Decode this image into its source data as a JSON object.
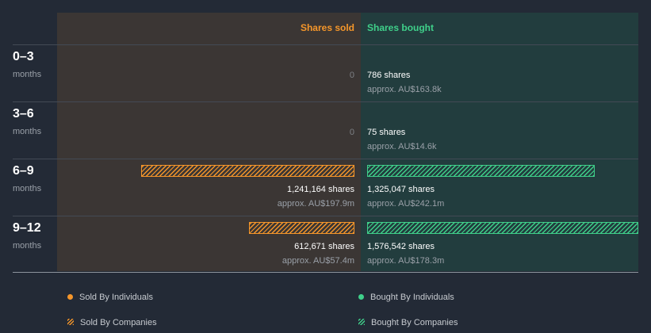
{
  "colors": {
    "sold": "#f5962a",
    "bought": "#3fd08a",
    "sold_bg": "#3b3634",
    "bought_bg": "#223d3e"
  },
  "chart_data": {
    "type": "bar",
    "title": "",
    "orientation": "horizontal-diverging",
    "column_headers": {
      "sold": "Shares sold",
      "bought": "Shares bought"
    },
    "categories": [
      {
        "period": "0–3",
        "unit": "months"
      },
      {
        "period": "3–6",
        "unit": "months"
      },
      {
        "period": "6–9",
        "unit": "months"
      },
      {
        "period": "9–12",
        "unit": "months"
      }
    ],
    "scale_max_shares": 1576542,
    "series": [
      {
        "name": "Shares sold",
        "values": [
          0,
          0,
          1241164,
          612671
        ],
        "labels": [
          "0",
          "0",
          "1,241,164 shares",
          "612,671 shares"
        ],
        "approx": [
          "",
          "",
          "approx. AU$197.9m",
          "approx. AU$57.4m"
        ]
      },
      {
        "name": "Shares bought",
        "values": [
          786,
          75,
          1325047,
          1576542
        ],
        "labels": [
          "786 shares",
          "75 shares",
          "1,325,047 shares",
          "1,576,542 shares"
        ],
        "approx": [
          "approx. AU$163.8k",
          "approx. AU$14.6k",
          "approx. AU$242.1m",
          "approx. AU$178.3m"
        ]
      }
    ],
    "legend": {
      "sold_individuals": "Sold By Individuals",
      "bought_individuals": "Bought By Individuals",
      "sold_companies": "Sold By Companies",
      "bought_companies": "Bought By Companies"
    }
  }
}
